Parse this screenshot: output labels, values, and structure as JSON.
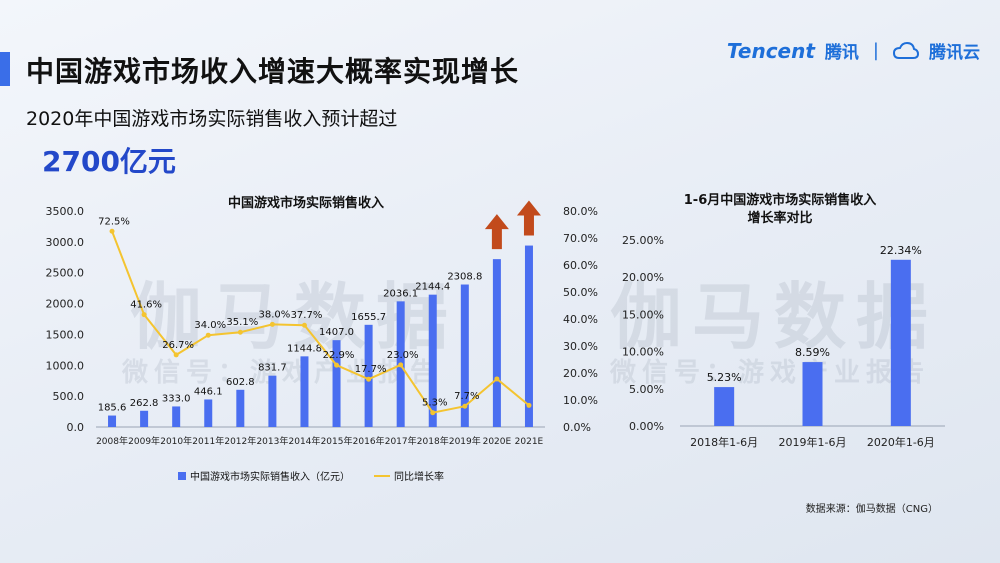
{
  "header": {
    "title": "中国游戏市场收入增速大概率实现增长",
    "subtitle": "2020年中国游戏市场实际销售收入预计超过",
    "highlight": "2700亿元"
  },
  "brand": {
    "tencent": "Tencent",
    "tencent_cn": "腾讯",
    "separator": "|",
    "cloud": "腾讯云"
  },
  "watermark": {
    "main": "伽马数据",
    "sub": "微信号：游戏产业报告"
  },
  "source": "数据来源：伽马数据（CNG）",
  "colors": {
    "bar": "#4a6ef0",
    "line": "#f4c430",
    "accent": "#3a6ee8",
    "arrow": "#c24a1c",
    "highlight": "#2348c9"
  },
  "chart_data": [
    {
      "type": "bar",
      "title": "中国游戏市场实际销售收入",
      "categories": [
        "2008年",
        "2009年",
        "2010年",
        "2011年",
        "2012年",
        "2013年",
        "2014年",
        "2015年",
        "2016年",
        "2017年",
        "2018年",
        "2019年",
        "2020E",
        "2021E"
      ],
      "series": [
        {
          "name": "中国游戏市场实际销售收入（亿元）",
          "type": "bar",
          "axis": "left",
          "values": [
            185.6,
            262.8,
            333.0,
            446.1,
            602.8,
            831.7,
            1144.8,
            1407.0,
            1655.7,
            2036.1,
            2144.4,
            2308.8,
            2720,
            2940
          ],
          "labels": [
            "185.6",
            "262.8",
            "333.0",
            "446.1",
            "602.8",
            "831.7",
            "1144.8",
            "1407.0",
            "1655.7",
            "2036.1",
            "2144.4",
            "2308.8",
            "",
            ""
          ]
        },
        {
          "name": "同比增长率",
          "type": "line",
          "axis": "right",
          "values": [
            72.5,
            41.6,
            26.7,
            34.0,
            35.1,
            38.0,
            37.7,
            22.9,
            17.7,
            23.0,
            5.3,
            7.7,
            17.8,
            8.0
          ],
          "labels": [
            "72.5%",
            "41.6%",
            "26.7%",
            "34.0%",
            "35.1%",
            "38.0%",
            "37.7%",
            "22.9%",
            "17.7%",
            "23.0%",
            "5.3%",
            "7.7%",
            "",
            ""
          ]
        }
      ],
      "ylim": [
        0,
        3500
      ],
      "yticks": [
        "0.0",
        "500.0",
        "1000.0",
        "1500.0",
        "2000.0",
        "2500.0",
        "3000.0",
        "3500.0"
      ],
      "y2lim": [
        0,
        80
      ],
      "y2ticks": [
        "0.0%",
        "10.0%",
        "20.0%",
        "30.0%",
        "40.0%",
        "50.0%",
        "60.0%",
        "70.0%",
        "80.0%"
      ],
      "arrow_categories": [
        "2020E",
        "2021E"
      ],
      "legend": "bottom",
      "grid": false
    },
    {
      "type": "bar",
      "title_lines": [
        "1-6月中国游戏市场实际销售收入",
        "增长率对比"
      ],
      "categories": [
        "2018年1-6月",
        "2019年1-6月",
        "2020年1-6月"
      ],
      "values": [
        5.23,
        8.59,
        22.34
      ],
      "labels": [
        "5.23%",
        "8.59%",
        "22.34%"
      ],
      "ylim": [
        0,
        25
      ],
      "yticks": [
        "0.00%",
        "5.00%",
        "10.00%",
        "15.00%",
        "20.00%",
        "25.00%"
      ],
      "grid": false
    }
  ]
}
